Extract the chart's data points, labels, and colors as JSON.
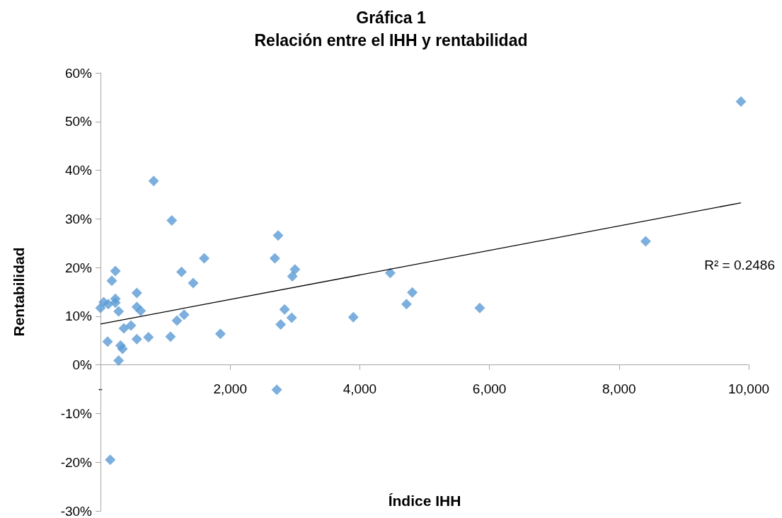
{
  "chart_data": {
    "type": "scatter",
    "title": "Gráfica 1\nRelación entre el IHH y rentabilidad",
    "xlabel": "Índice IHH",
    "ylabel": "Rentabilidad",
    "marker": "diamond",
    "grid": false,
    "xlim": [
      0,
      10000
    ],
    "xticks": [
      {
        "value": 0,
        "label": "-"
      },
      {
        "value": 2000,
        "label": "2,000"
      },
      {
        "value": 4000,
        "label": "4,000"
      },
      {
        "value": 6000,
        "label": "6,000"
      },
      {
        "value": 8000,
        "label": "8,000"
      },
      {
        "value": 10000,
        "label": "10,000"
      }
    ],
    "ylim": [
      -30,
      60
    ],
    "yticks": [
      {
        "value": -30,
        "label": "-30%"
      },
      {
        "value": -20,
        "label": "-20%"
      },
      {
        "value": -10,
        "label": "-10%"
      },
      {
        "value": 0,
        "label": "0%"
      },
      {
        "value": 10,
        "label": "10%"
      },
      {
        "value": 20,
        "label": "20%"
      },
      {
        "value": 30,
        "label": "30%"
      },
      {
        "value": 40,
        "label": "40%"
      },
      {
        "value": 50,
        "label": "50%"
      },
      {
        "value": 60,
        "label": "60%"
      }
    ],
    "annotations": [
      "R² = 0.2486"
    ],
    "series": [
      {
        "color": "#5b9bd5",
        "x": [
          0,
          50,
          120,
          110,
          150,
          175,
          230,
          230,
          230,
          280,
          280,
          310,
          340,
          360,
          470,
          560,
          560,
          620,
          560,
          740,
          820,
          1100,
          1080,
          1180,
          1250,
          1290,
          1430,
          1600,
          1850,
          2690,
          2740,
          2720,
          2780,
          2840,
          2950,
          2960,
          3000,
          3900,
          4470,
          4720,
          4810,
          5850,
          8410,
          9880
        ],
        "values": [
          11.7,
          12.9,
          12.5,
          4.8,
          -19.5,
          17.3,
          13.6,
          19.3,
          12.8,
          11.0,
          0.9,
          4.0,
          3.3,
          7.5,
          8.1,
          14.8,
          11.9,
          11.1,
          5.3,
          5.7,
          37.8,
          29.7,
          5.8,
          9.1,
          19.1,
          10.3,
          16.8,
          21.9,
          6.4,
          21.9,
          26.6,
          -5.1,
          8.3,
          11.4,
          9.7,
          18.2,
          19.6,
          9.8,
          18.9,
          12.5,
          14.9,
          11.7,
          25.4,
          54.1
        ]
      },
      {
        "type": "line",
        "color": "#000000",
        "marker": "none",
        "x": [
          0,
          9880
        ],
        "values": [
          8.4,
          33.3
        ]
      }
    ]
  }
}
